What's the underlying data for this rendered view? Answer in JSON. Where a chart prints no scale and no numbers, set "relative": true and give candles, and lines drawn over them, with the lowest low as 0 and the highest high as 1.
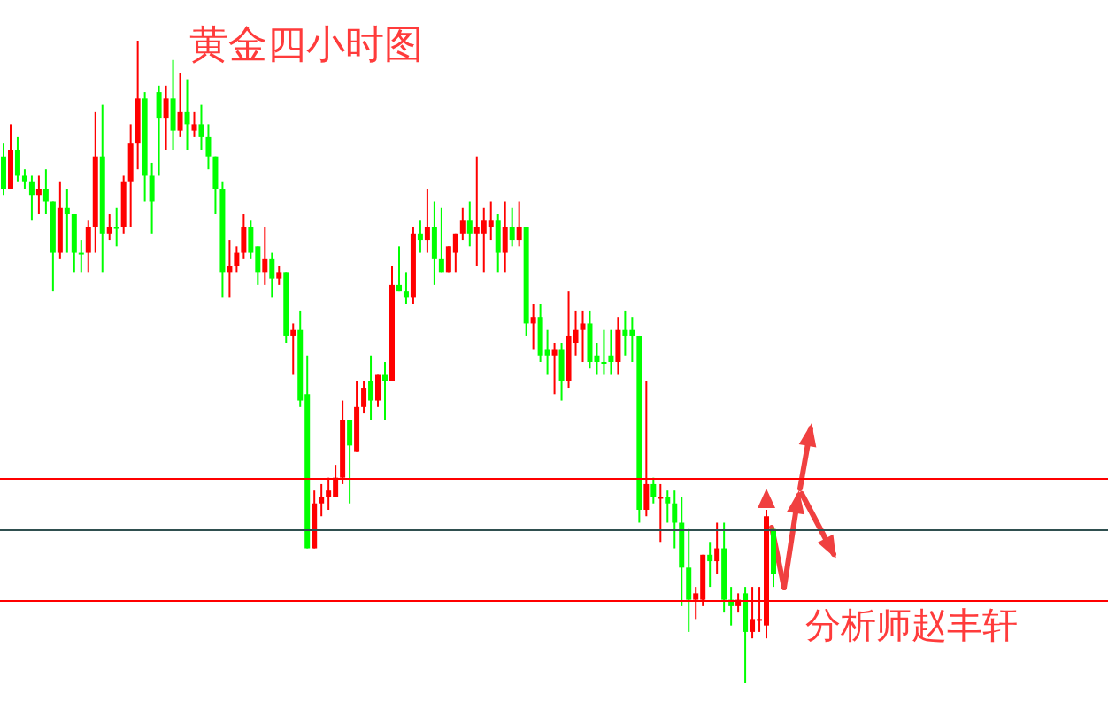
{
  "chart_data": {
    "type": "candlestick",
    "relative": true,
    "title": "黄金四小时图",
    "annotations": [
      "分析师赵丰轩"
    ],
    "categories": [
      null,
      null,
      null,
      null,
      null,
      null,
      null,
      null,
      null,
      null,
      null,
      null,
      null,
      null,
      null,
      null,
      null,
      null,
      null,
      null,
      null,
      null,
      null,
      null,
      null,
      null,
      null,
      null,
      null,
      null,
      null,
      null,
      null,
      null,
      null,
      null,
      null,
      null,
      null,
      null,
      null,
      null,
      null,
      null,
      null,
      null,
      null,
      null,
      null,
      null,
      null,
      null,
      null,
      null,
      null,
      null,
      null,
      null,
      null,
      null,
      null,
      null,
      null,
      null,
      null,
      null,
      null,
      null,
      null,
      null,
      null,
      null,
      null,
      null,
      null,
      null,
      null,
      null,
      null,
      null,
      null,
      null,
      null,
      null,
      null,
      null,
      null,
      null,
      null,
      null,
      null,
      null,
      null,
      null,
      null,
      null,
      null,
      null,
      null,
      null,
      null,
      null,
      null,
      null,
      null,
      null,
      null,
      null,
      null,
      null
    ],
    "ohlc": [
      [
        0.82,
        0.84,
        0.76,
        0.77
      ],
      [
        0.77,
        0.87,
        0.77,
        0.83
      ],
      [
        0.83,
        0.85,
        0.78,
        0.79
      ],
      [
        0.79,
        0.8,
        0.77,
        0.78
      ],
      [
        0.78,
        0.79,
        0.72,
        0.76
      ],
      [
        0.76,
        0.79,
        0.73,
        0.77
      ],
      [
        0.77,
        0.8,
        0.73,
        0.75
      ],
      [
        0.75,
        0.75,
        0.61,
        0.67
      ],
      [
        0.67,
        0.78,
        0.66,
        0.74
      ],
      [
        0.74,
        0.77,
        0.67,
        0.73
      ],
      [
        0.73,
        0.73,
        0.64,
        0.67
      ],
      [
        0.67,
        0.69,
        0.64,
        0.67
      ],
      [
        0.67,
        0.72,
        0.64,
        0.71
      ],
      [
        0.71,
        0.89,
        0.67,
        0.82
      ],
      [
        0.82,
        0.9,
        0.64,
        0.7
      ],
      [
        0.7,
        0.73,
        0.69,
        0.71
      ],
      [
        0.71,
        0.74,
        0.68,
        0.71
      ],
      [
        0.71,
        0.79,
        0.7,
        0.78
      ],
      [
        0.78,
        0.87,
        0.71,
        0.84
      ],
      [
        0.84,
        1,
        0.8,
        0.91
      ],
      [
        0.91,
        0.92,
        0.75,
        0.79
      ],
      [
        0.79,
        0.81,
        0.7,
        0.75
      ],
      [
        0.92,
        0.93,
        0.79,
        0.88
      ],
      [
        0.88,
        0.93,
        0.83,
        0.91
      ],
      [
        0.91,
        0.97,
        0.83,
        0.86
      ],
      [
        0.86,
        0.95,
        0.85,
        0.89
      ],
      [
        0.89,
        0.94,
        0.83,
        0.87
      ],
      [
        0.86,
        0.89,
        0.85,
        0.87
      ],
      [
        0.87,
        0.9,
        0.83,
        0.85
      ],
      [
        0.85,
        0.87,
        0.8,
        0.82
      ],
      [
        0.82,
        0.82,
        0.73,
        0.77
      ],
      [
        0.77,
        0.78,
        0.6,
        0.64
      ],
      [
        0.64,
        0.69,
        0.6,
        0.65
      ],
      [
        0.65,
        0.68,
        0.64,
        0.67
      ],
      [
        0.67,
        0.73,
        0.66,
        0.71
      ],
      [
        0.71,
        0.72,
        0.66,
        0.67
      ],
      [
        0.68,
        0.68,
        0.62,
        0.64
      ],
      [
        0.64,
        0.71,
        0.62,
        0.66
      ],
      [
        0.66,
        0.67,
        0.6,
        0.63
      ],
      [
        0.63,
        0.65,
        0.62,
        0.64
      ],
      [
        0.64,
        0.64,
        0.53,
        0.54
      ],
      [
        0.54,
        0.56,
        0.48,
        0.55
      ],
      [
        0.55,
        0.58,
        0.43,
        0.44
      ],
      [
        0.45,
        0.51,
        0.21,
        0.21
      ],
      [
        0.21,
        0.3,
        0.21,
        0.28
      ],
      [
        0.28,
        0.31,
        0.26,
        0.29
      ],
      [
        0.29,
        0.32,
        0.27,
        0.3
      ],
      [
        0.29,
        0.34,
        0.29,
        0.32
      ],
      [
        0.32,
        0.44,
        0.31,
        0.41
      ],
      [
        0.41,
        0.41,
        0.28,
        0.37
      ],
      [
        0.36,
        0.47,
        0.36,
        0.43
      ],
      [
        0.43,
        0.47,
        0.42,
        0.46
      ],
      [
        0.47,
        0.51,
        0.41,
        0.44
      ],
      [
        0.44,
        0.48,
        0.43,
        0.48
      ],
      [
        0.48,
        0.5,
        0.41,
        0.47
      ],
      [
        0.47,
        0.65,
        0.47,
        0.62
      ],
      [
        0.62,
        0.68,
        0.61,
        0.61
      ],
      [
        0.61,
        0.64,
        0.59,
        0.6
      ],
      [
        0.6,
        0.71,
        0.59,
        0.7
      ],
      [
        0.7,
        0.72,
        0.67,
        0.69
      ],
      [
        0.69,
        0.77,
        0.67,
        0.71
      ],
      [
        0.71,
        0.75,
        0.62,
        0.66
      ],
      [
        0.66,
        0.74,
        0.64,
        0.64
      ],
      [
        0.64,
        0.68,
        0.64,
        0.68
      ],
      [
        0.67,
        0.7,
        0.64,
        0.7
      ],
      [
        0.7,
        0.74,
        0.69,
        0.72
      ],
      [
        0.72,
        0.75,
        0.68,
        0.7
      ],
      [
        0.7,
        0.82,
        0.65,
        0.71
      ],
      [
        0.7,
        0.74,
        0.64,
        0.72
      ],
      [
        0.71,
        0.75,
        0.69,
        0.72
      ],
      [
        0.72,
        0.73,
        0.64,
        0.67
      ],
      [
        0.67,
        0.75,
        0.64,
        0.71
      ],
      [
        0.71,
        0.74,
        0.68,
        0.69
      ],
      [
        0.69,
        0.75,
        0.68,
        0.71
      ],
      [
        0.71,
        0.71,
        0.54,
        0.56
      ],
      [
        0.56,
        0.59,
        0.52,
        0.57
      ],
      [
        0.57,
        0.59,
        0.5,
        0.51
      ],
      [
        0.52,
        0.55,
        0.48,
        0.51
      ],
      [
        0.51,
        0.53,
        0.45,
        0.52
      ],
      [
        0.52,
        0.53,
        0.44,
        0.47
      ],
      [
        0.47,
        0.61,
        0.46,
        0.54
      ],
      [
        0.53,
        0.58,
        0.51,
        0.55
      ],
      [
        0.55,
        0.58,
        0.5,
        0.56
      ],
      [
        0.56,
        0.58,
        0.49,
        0.5
      ],
      [
        0.51,
        0.53,
        0.48,
        0.5
      ],
      [
        0.5,
        0.55,
        0.48,
        0.5
      ],
      [
        0.51,
        0.55,
        0.48,
        0.5
      ],
      [
        0.5,
        0.57,
        0.48,
        0.55
      ],
      [
        0.55,
        0.58,
        0.51,
        0.54
      ],
      [
        0.55,
        0.57,
        0.5,
        0.54
      ],
      [
        0.54,
        0.54,
        0.25,
        0.27
      ],
      [
        0.27,
        0.47,
        0.26,
        0.31
      ],
      [
        0.31,
        0.32,
        0.28,
        0.29
      ],
      [
        0.29,
        0.31,
        0.22,
        0.29
      ],
      [
        0.29,
        0.3,
        0.25,
        0.28
      ],
      [
        0.28,
        0.3,
        0.21,
        0.25
      ],
      [
        0.25,
        0.29,
        0.12,
        0.18
      ],
      [
        0.18,
        0.24,
        0.08,
        0.13
      ],
      [
        0.13,
        0.15,
        0.1,
        0.14
      ],
      [
        0.13,
        0.2,
        0.12,
        0.2
      ],
      [
        0.2,
        0.22,
        0.15,
        0.19
      ],
      [
        0.19,
        0.25,
        0.17,
        0.21
      ],
      [
        0.21,
        0.25,
        0.11,
        0.13
      ],
      [
        0.13,
        0.15,
        0.09,
        0.12
      ],
      [
        0.12,
        0.14,
        0.11,
        0.13
      ],
      [
        0.14,
        0.15,
        0,
        0.08
      ],
      [
        0.08,
        0.15,
        0.07,
        0.1
      ],
      [
        0.1,
        0.15,
        0.08,
        0.1
      ],
      [
        0.09,
        0.27,
        0.07,
        0.26
      ],
      [
        0.24,
        0.24,
        0.15,
        0.17
      ]
    ],
    "colors": [
      "#00ff00",
      "#ff0000",
      "#00ff00",
      "#00ff00",
      "#00ff00",
      "#ff0000",
      "#00ff00",
      "#00ff00",
      "#ff0000",
      "#00ff00",
      "#00ff00",
      "#00ff00",
      "#ff0000",
      "#ff0000",
      "#00ff00",
      "#ff0000",
      "#00ff00",
      "#ff0000",
      "#ff0000",
      "#ff0000",
      "#00ff00",
      "#00ff00",
      "#00ff00",
      "#ff0000",
      "#00ff00",
      "#ff0000",
      "#00ff00",
      "#ff0000",
      "#00ff00",
      "#00ff00",
      "#00ff00",
      "#00ff00",
      "#ff0000",
      "#ff0000",
      "#ff0000",
      "#00ff00",
      "#00ff00",
      "#ff0000",
      "#00ff00",
      "#ff0000",
      "#00ff00",
      "#ff0000",
      "#00ff00",
      "#00ff00",
      "#ff0000",
      "#ff0000",
      "#ff0000",
      "#ff0000",
      "#ff0000",
      "#00ff00",
      "#ff0000",
      "#ff0000",
      "#00ff00",
      "#ff0000",
      "#00ff00",
      "#ff0000",
      "#00ff00",
      "#00ff00",
      "#ff0000",
      "#00ff00",
      "#ff0000",
      "#00ff00",
      "#00ff00",
      "#ff0000",
      "#ff0000",
      "#ff0000",
      "#00ff00",
      "#ff0000",
      "#ff0000",
      "#ff0000",
      "#00ff00",
      "#ff0000",
      "#00ff00",
      "#ff0000",
      "#00ff00",
      "#ff0000",
      "#00ff00",
      "#00ff00",
      "#ff0000",
      "#00ff00",
      "#ff0000",
      "#ff0000",
      "#ff0000",
      "#00ff00",
      "#00ff00",
      "#00ff00",
      "#00ff00",
      "#ff0000",
      "#00ff00",
      "#00ff00",
      "#00ff00",
      "#ff0000",
      "#00ff00",
      "#ff0000",
      "#00ff00",
      "#00ff00",
      "#00ff00",
      "#00ff00",
      "#ff0000",
      "#ff0000",
      "#00ff00",
      "#ff0000",
      "#00ff00",
      "#00ff00",
      "#ff0000",
      "#00ff00",
      "#ff0000",
      "#ff0000",
      "#ff0000",
      "#00ff00"
    ],
    "ref_lines": [
      {
        "axis": "y",
        "value": 0.32,
        "color": "#ff0000"
      },
      {
        "axis": "y",
        "value": 0.24,
        "color": "#2f4f4f"
      },
      {
        "axis": "y",
        "value": 0.13,
        "color": "#ff0000"
      }
    ]
  }
}
